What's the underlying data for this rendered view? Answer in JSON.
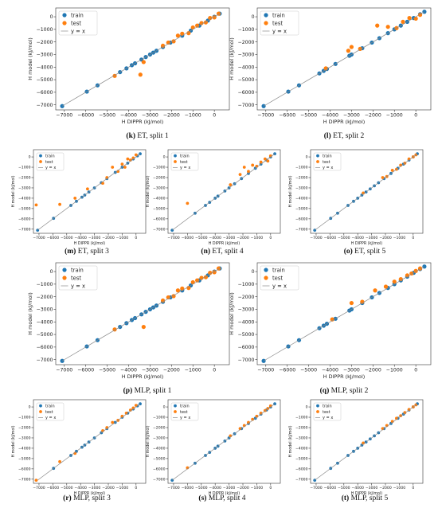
{
  "legend_labels": [
    "train",
    "test",
    "y = x"
  ],
  "colors": {
    "train": "#1f77b4",
    "test": "#ff7f0e",
    "identity": "#888888"
  },
  "axes_common": {
    "xlabel": "H DIPPR (kJ/mol)",
    "ylabel": "H model (kJ/mol)",
    "xticks": [
      -7000,
      -6000,
      -5000,
      -4000,
      -3000,
      -2000,
      -1000,
      0
    ],
    "yticks": [
      -7000,
      -6000,
      -5000,
      -4000,
      -3000,
      -2000,
      -1000,
      0
    ],
    "xlim": [
      -7400,
      700
    ],
    "ylim": [
      -7400,
      700
    ]
  },
  "chart_data": [
    {
      "type": "scatter",
      "caption_letter": "(k)",
      "caption_text": " ET, split 1",
      "title": "",
      "xlabel": "H DIPPR (kJ/mol)",
      "ylabel": "H model (kJ/mol)",
      "xlim": [
        -7400,
        700
      ],
      "ylim": [
        -7400,
        700
      ],
      "legend": "top-left",
      "grid": false,
      "series": [
        {
          "name": "train",
          "x": [
            -7100,
            -5950,
            -5450,
            -4400,
            -4100,
            -3850,
            -3700,
            -3400,
            -3200,
            -3000,
            -2850,
            -2700,
            -2400,
            -2050,
            -1500,
            -1100,
            -700,
            -300,
            0,
            250
          ],
          "y": [
            -7100,
            -5950,
            -5450,
            -4400,
            -4100,
            -3850,
            -3700,
            -3400,
            -3200,
            -3000,
            -2850,
            -2700,
            -2400,
            -2050,
            -1500,
            -1100,
            -700,
            -300,
            0,
            250
          ]
        },
        {
          "name": "test",
          "x": [
            -4650,
            -3450,
            -3300,
            -2400,
            -2150,
            -1900,
            -1700,
            -1500,
            -1200,
            -1000,
            -800,
            -600,
            -400,
            -200,
            0,
            200
          ],
          "y": [
            -4700,
            -4600,
            -3600,
            -2300,
            -2050,
            -1950,
            -1500,
            -1350,
            -1300,
            -850,
            -700,
            -500,
            -450,
            -100,
            -50,
            250
          ]
        },
        {
          "name": "y = x",
          "x": [
            -7100,
            300
          ],
          "y": [
            -7100,
            300
          ]
        }
      ]
    },
    {
      "type": "scatter",
      "caption_letter": "(l)",
      "caption_text": " ET, split 2",
      "title": "",
      "xlabel": "H DIPPR (kJ/mol)",
      "ylabel": "H model (kJ/mol)",
      "xlim": [
        -7400,
        700
      ],
      "ylim": [
        -7400,
        700
      ],
      "legend": "top-left",
      "grid": false,
      "series": [
        {
          "name": "train",
          "x": [
            -7100,
            -5950,
            -5450,
            -4500,
            -4300,
            -4150,
            -3750,
            -3100,
            -3000,
            -2500,
            -2050,
            -1700,
            -1300,
            -1000,
            -700,
            -400,
            -100,
            200,
            400
          ],
          "y": [
            -7100,
            -5950,
            -5450,
            -4500,
            -4300,
            -4150,
            -3750,
            -3100,
            -3000,
            -2500,
            -2050,
            -1700,
            -1300,
            -1000,
            -700,
            -400,
            -100,
            200,
            400
          ]
        },
        {
          "name": "test",
          "x": [
            -4200,
            -3150,
            -3000,
            -2600,
            -1800,
            -1300,
            -900,
            -600,
            -300,
            0,
            200
          ],
          "y": [
            -4100,
            -2700,
            -2400,
            -2550,
            -700,
            -800,
            -900,
            -400,
            -100,
            -150,
            150
          ]
        },
        {
          "name": "y = x",
          "x": [
            -7100,
            400
          ],
          "y": [
            -7100,
            400
          ]
        }
      ]
    },
    {
      "type": "scatter",
      "caption_letter": "(m)",
      "caption_text": " ET, split 3",
      "title": "",
      "xlabel": "H DIPPR (kJ/mol)",
      "ylabel": "H model (kJ/mol)",
      "xlim": [
        -7400,
        700
      ],
      "ylim": [
        -7400,
        700
      ],
      "legend": "top-left",
      "grid": false,
      "series": [
        {
          "name": "train",
          "x": [
            -7100,
            -5950,
            -4700,
            -4300,
            -3900,
            -3700,
            -3400,
            -3000,
            -2500,
            -2100,
            -1500,
            -1000,
            -600,
            -200,
            100,
            300
          ],
          "y": [
            -7100,
            -5950,
            -4700,
            -4300,
            -3900,
            -3700,
            -3400,
            -3000,
            -2500,
            -2100,
            -1500,
            -1000,
            -600,
            -200,
            100,
            300
          ]
        },
        {
          "name": "test",
          "x": [
            -7200,
            -5500,
            -4400,
            -3500,
            -2400,
            -2100,
            -1700,
            -1300,
            -1000,
            -800,
            -600,
            -400,
            -200,
            0
          ],
          "y": [
            -4650,
            -4600,
            -4000,
            -3100,
            -2550,
            -2000,
            -1000,
            -1400,
            -700,
            -1000,
            -200,
            -300,
            -100,
            200
          ]
        },
        {
          "name": "y = x",
          "x": [
            -7100,
            300
          ],
          "y": [
            -7100,
            300
          ]
        }
      ]
    },
    {
      "type": "scatter",
      "caption_letter": "(n)",
      "caption_text": " ET, split 4",
      "title": "",
      "xlabel": "H DIPPR (kJ/mol)",
      "ylabel": "H model (kJ/mol)",
      "xlim": [
        -7400,
        700
      ],
      "ylim": [
        -7400,
        700
      ],
      "legend": "top-left",
      "grid": false,
      "series": [
        {
          "name": "train",
          "x": [
            -7100,
            -5450,
            -4700,
            -4400,
            -4000,
            -3800,
            -3300,
            -3000,
            -2600,
            -2100,
            -1600,
            -1100,
            -700,
            -300,
            0,
            300
          ],
          "y": [
            -7100,
            -5450,
            -4700,
            -4400,
            -4000,
            -3800,
            -3300,
            -3000,
            -2600,
            -2100,
            -1600,
            -1100,
            -700,
            -300,
            0,
            300
          ]
        },
        {
          "name": "test",
          "x": [
            -6000,
            -2900,
            -2200,
            -1900,
            -1600,
            -1300,
            -1000,
            -700,
            -400,
            -200,
            0
          ],
          "y": [
            -4500,
            -2700,
            -1700,
            -1000,
            -1400,
            -800,
            -900,
            -500,
            -200,
            -400,
            100
          ]
        },
        {
          "name": "y = x",
          "x": [
            -7100,
            300
          ],
          "y": [
            -7100,
            300
          ]
        }
      ]
    },
    {
      "type": "scatter",
      "caption_letter": "(o)",
      "caption_text": " ET, split 5",
      "title": "",
      "xlabel": "H DIPPR (kJ/mol)",
      "ylabel": "H model (kJ/mol)",
      "xlim": [
        -7400,
        700
      ],
      "ylim": [
        -7400,
        700
      ],
      "legend": "top-left",
      "grid": false,
      "series": [
        {
          "name": "train",
          "x": [
            -7100,
            -5950,
            -5450,
            -4700,
            -4300,
            -4000,
            -3700,
            -3400,
            -3100,
            -2800,
            -2500,
            -2100,
            -1600,
            -1100,
            -700,
            -300,
            0,
            300
          ],
          "y": [
            -7100,
            -5950,
            -5450,
            -4700,
            -4300,
            -4000,
            -3700,
            -3400,
            -3100,
            -2800,
            -2500,
            -2100,
            -1600,
            -1100,
            -700,
            -300,
            0,
            300
          ]
        },
        {
          "name": "test",
          "x": [
            -3600,
            -2200,
            -1900,
            -1500,
            -1200,
            -900,
            -600,
            -300,
            0,
            200
          ],
          "y": [
            -3500,
            -2000,
            -1900,
            -1300,
            -1200,
            -800,
            -600,
            -200,
            0,
            200
          ]
        },
        {
          "name": "y = x",
          "x": [
            -7100,
            300
          ],
          "y": [
            -7100,
            300
          ]
        }
      ]
    },
    {
      "type": "scatter",
      "caption_letter": "(p)",
      "caption_text": " MLP, split 1",
      "title": "",
      "xlabel": "H DIPPR (kJ/mol)",
      "ylabel": "H model (kJ/mol)",
      "xlim": [
        -7400,
        700
      ],
      "ylim": [
        -7400,
        700
      ],
      "legend": "top-left",
      "grid": false,
      "series": [
        {
          "name": "train",
          "x": [
            -7100,
            -5950,
            -5450,
            -4400,
            -4100,
            -3850,
            -3700,
            -3400,
            -3200,
            -3000,
            -2850,
            -2700,
            -2400,
            -2050,
            -1500,
            -1100,
            -700,
            -300,
            0,
            250
          ],
          "y": [
            -7100,
            -5950,
            -5450,
            -4400,
            -4100,
            -3850,
            -3700,
            -3400,
            -3200,
            -3000,
            -2850,
            -2700,
            -2400,
            -2050,
            -1500,
            -1100,
            -700,
            -300,
            0,
            250
          ]
        },
        {
          "name": "test",
          "x": [
            -4650,
            -3300,
            -2400,
            -2150,
            -1900,
            -1700,
            -1500,
            -1200,
            -1000,
            -800,
            -600,
            -400,
            -200,
            0,
            200
          ],
          "y": [
            -4600,
            -4400,
            -2300,
            -2050,
            -1950,
            -1500,
            -1350,
            -1300,
            -850,
            -700,
            -500,
            -450,
            -100,
            -50,
            250
          ]
        },
        {
          "name": "y = x",
          "x": [
            -7100,
            300
          ],
          "y": [
            -7100,
            300
          ]
        }
      ]
    },
    {
      "type": "scatter",
      "caption_letter": "(q)",
      "caption_text": " MLP, split 2",
      "title": "",
      "xlabel": "H DIPPR (kJ/mol)",
      "ylabel": "H model (kJ/mol)",
      "xlim": [
        -7400,
        700
      ],
      "ylim": [
        -7400,
        700
      ],
      "legend": "top-left",
      "grid": false,
      "series": [
        {
          "name": "train",
          "x": [
            -7100,
            -5950,
            -5450,
            -4500,
            -4300,
            -4150,
            -3750,
            -3100,
            -3000,
            -2500,
            -2050,
            -1700,
            -1300,
            -1000,
            -700,
            -400,
            -100,
            200,
            400
          ],
          "y": [
            -7100,
            -5950,
            -5450,
            -4500,
            -4300,
            -4150,
            -3750,
            -3100,
            -3000,
            -2500,
            -2050,
            -1700,
            -1300,
            -1000,
            -700,
            -400,
            -100,
            200,
            400
          ]
        },
        {
          "name": "test",
          "x": [
            -3900,
            -3000,
            -2500,
            -1900,
            -1400,
            -1000,
            -700,
            -400,
            -200,
            0,
            200
          ],
          "y": [
            -3800,
            -2500,
            -2400,
            -1500,
            -1200,
            -800,
            -600,
            -300,
            -150,
            50,
            250
          ]
        },
        {
          "name": "y = x",
          "x": [
            -7100,
            400
          ],
          "y": [
            -7100,
            400
          ]
        }
      ]
    },
    {
      "type": "scatter",
      "caption_letter": "(r)",
      "caption_text": " MLP, split 3",
      "title": "",
      "xlabel": "H DIPPR (kJ/mol)",
      "ylabel": "H model (kJ/mol)",
      "xlim": [
        -7400,
        700
      ],
      "ylim": [
        -7400,
        700
      ],
      "legend": "top-left",
      "grid": false,
      "series": [
        {
          "name": "train",
          "x": [
            -5950,
            -4700,
            -4300,
            -3900,
            -3700,
            -3400,
            -3000,
            -2500,
            -2100,
            -1500,
            -1000,
            -600,
            -200,
            100,
            300
          ],
          "y": [
            -5950,
            -4700,
            -4300,
            -3900,
            -3700,
            -3400,
            -3000,
            -2500,
            -2100,
            -1500,
            -1000,
            -600,
            -200,
            100,
            300
          ]
        },
        {
          "name": "test",
          "x": [
            -7200,
            -5500,
            -4400,
            -2400,
            -2100,
            -1700,
            -1300,
            -1000,
            -700,
            -400,
            -200,
            0
          ],
          "y": [
            -7100,
            -5300,
            -4500,
            -2300,
            -2000,
            -1500,
            -1300,
            -900,
            -600,
            -300,
            -100,
            150
          ]
        },
        {
          "name": "y = x",
          "x": [
            -7100,
            300
          ],
          "y": [
            -7100,
            300
          ]
        }
      ]
    },
    {
      "type": "scatter",
      "caption_letter": "(s)",
      "caption_text": " MLP, split 4",
      "title": "",
      "xlabel": "H DIPPR (kJ/mol)",
      "ylabel": "H model (kJ/mol)",
      "xlim": [
        -7400,
        700
      ],
      "ylim": [
        -7400,
        700
      ],
      "legend": "top-left",
      "grid": false,
      "series": [
        {
          "name": "train",
          "x": [
            -7100,
            -5450,
            -4700,
            -4400,
            -4000,
            -3800,
            -3300,
            -3000,
            -2600,
            -2100,
            -1600,
            -1100,
            -700,
            -300,
            0,
            300
          ],
          "y": [
            -7100,
            -5450,
            -4700,
            -4400,
            -4000,
            -3800,
            -3300,
            -3000,
            -2600,
            -2100,
            -1600,
            -1100,
            -700,
            -300,
            0,
            300
          ]
        },
        {
          "name": "test",
          "x": [
            -6000,
            -2900,
            -2200,
            -1900,
            -1600,
            -1300,
            -1000,
            -700,
            -400,
            -200,
            0
          ],
          "y": [
            -5900,
            -2800,
            -2100,
            -1800,
            -1500,
            -1200,
            -900,
            -600,
            -350,
            -150,
            100
          ]
        },
        {
          "name": "y = x",
          "x": [
            -7100,
            300
          ],
          "y": [
            -7100,
            300
          ]
        }
      ]
    },
    {
      "type": "scatter",
      "caption_letter": "(t)",
      "caption_text": " MLP, split 5",
      "title": "",
      "xlabel": "H DIPPR (kJ/mol)",
      "ylabel": "H model (kJ/mol)",
      "xlim": [
        -7400,
        700
      ],
      "ylim": [
        -7400,
        700
      ],
      "legend": "top-left",
      "grid": false,
      "series": [
        {
          "name": "train",
          "x": [
            -7100,
            -5950,
            -5450,
            -4700,
            -4300,
            -4000,
            -3700,
            -3400,
            -3100,
            -2800,
            -2500,
            -2100,
            -1600,
            -1100,
            -700,
            -300,
            0,
            300
          ],
          "y": [
            -7100,
            -5950,
            -5450,
            -4700,
            -4300,
            -4000,
            -3700,
            -3400,
            -3100,
            -2800,
            -2500,
            -2100,
            -1600,
            -1100,
            -700,
            -300,
            0,
            300
          ]
        },
        {
          "name": "test",
          "x": [
            -3600,
            -2200,
            -1900,
            -1500,
            -1200,
            -900,
            -600,
            -300,
            0,
            200
          ],
          "y": [
            -3500,
            -2100,
            -1800,
            -1400,
            -1100,
            -850,
            -550,
            -250,
            0,
            200
          ]
        },
        {
          "name": "y = x",
          "x": [
            -7100,
            300
          ],
          "y": [
            -7100,
            300
          ]
        }
      ]
    }
  ]
}
